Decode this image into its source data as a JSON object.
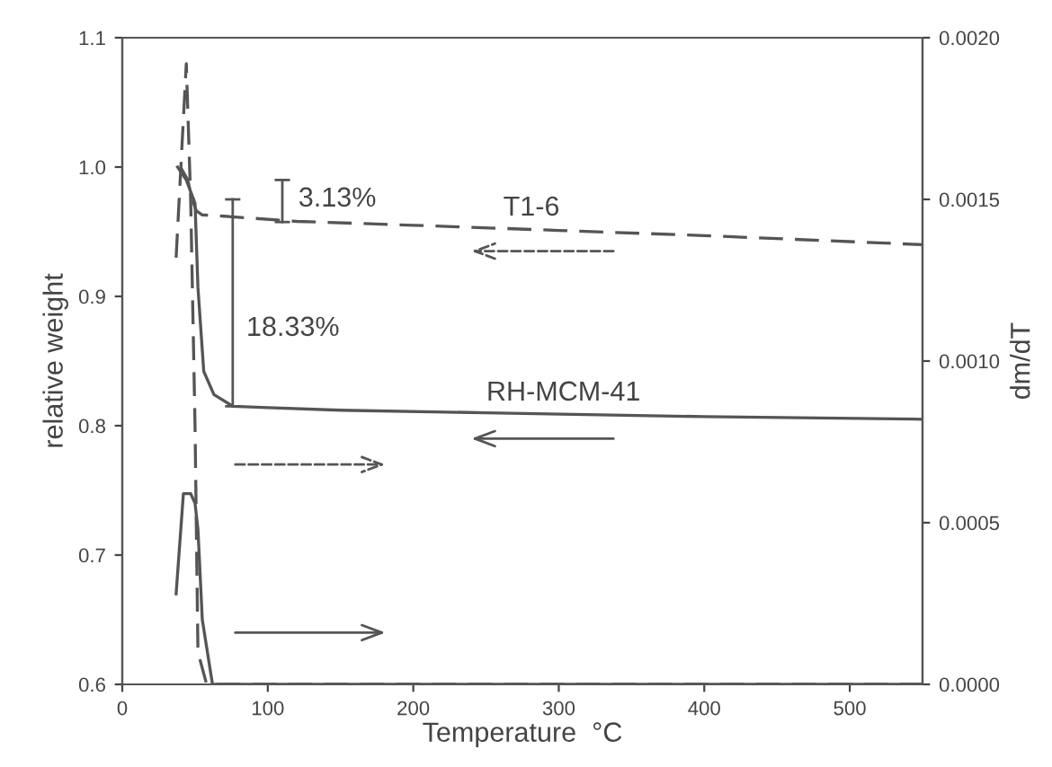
{
  "chart_data": {
    "type": "line",
    "xlabel": "Temperature  °C",
    "ylabel": "relative weight",
    "y2label": "dm/dT",
    "xlim": [
      0,
      550
    ],
    "xticks": [
      0,
      100,
      200,
      300,
      400,
      500
    ],
    "ylim": [
      0.6,
      1.1
    ],
    "yticks": [
      {
        "value": 0.6,
        "label": "0.6"
      },
      {
        "value": 0.7,
        "label": "0.7"
      },
      {
        "value": 0.8,
        "label": "0.8"
      },
      {
        "value": 0.9,
        "label": "0.9"
      },
      {
        "value": 1.0,
        "label": "1.0"
      },
      {
        "value": 1.1,
        "label": "1.1"
      }
    ],
    "y2lim": [
      0,
      0.002
    ],
    "y2ticks": [
      {
        "value": 0,
        "label": "0.0000"
      },
      {
        "value": 0.0005,
        "label": "0.0005"
      },
      {
        "value": 0.001,
        "label": "0.0010"
      },
      {
        "value": 0.0015,
        "label": "0.0015"
      },
      {
        "value": 0.002,
        "label": "0.0020"
      }
    ],
    "grid": false,
    "legend": false,
    "series": [
      {
        "color": "#555555",
        "line_style": "solid",
        "x": [
          38,
          44,
          50,
          52,
          56,
          63,
          76,
          100,
          150,
          250,
          400,
          550
        ],
        "values": [
          1.0,
          0.99,
          0.972,
          0.907,
          0.842,
          0.824,
          0.815,
          0.814,
          0.812,
          0.81,
          0.807,
          0.805
        ]
      },
      {
        "color": "#555555",
        "line_style": "dashed",
        "x": [
          40,
          45,
          48,
          51,
          55,
          70,
          120,
          200,
          300,
          400,
          550
        ],
        "values": [
          1.0,
          0.99,
          0.975,
          0.966,
          0.963,
          0.962,
          0.958,
          0.955,
          0.951,
          0.947,
          0.94
        ]
      },
      {
        "color": "#555555",
        "line_style": "solid",
        "axis": "y2",
        "x": [
          37,
          42,
          47,
          50,
          52,
          55,
          62,
          550
        ],
        "values": [
          0.00028,
          0.00059,
          0.00059,
          0.00056,
          0.00048,
          0.0002,
          0,
          0
        ]
      },
      {
        "color": "#555555",
        "line_style": "dashed",
        "axis": "y2",
        "x": [
          37,
          44,
          47,
          50,
          52,
          58,
          550
        ],
        "values": [
          0.00132,
          0.00192,
          0.0015,
          0.0008,
          0.0001,
          0,
          0
        ]
      }
    ],
    "annotations": [
      "3.13%",
      "18.33%",
      "T1-6",
      "RH-MCM-41"
    ]
  }
}
